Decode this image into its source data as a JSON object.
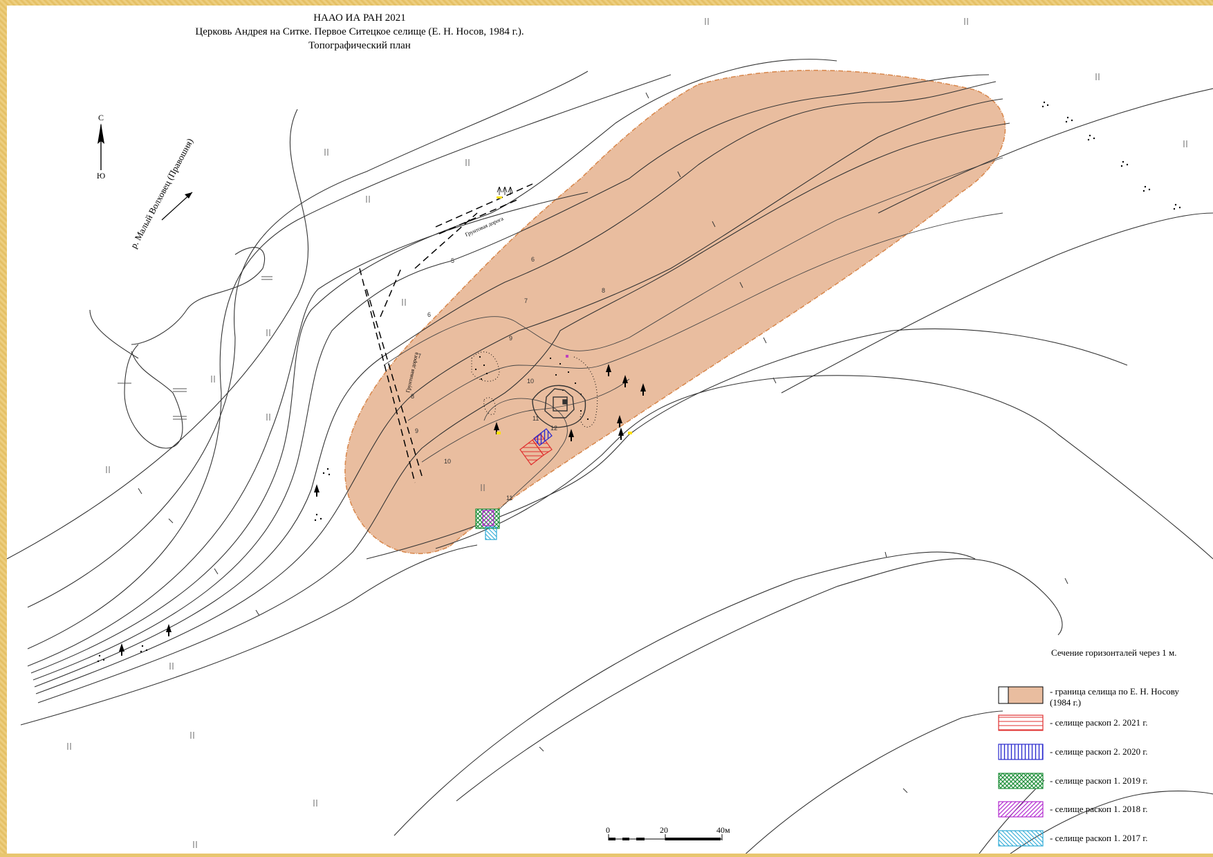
{
  "title": {
    "line1": "НААО ИА РАН 2021",
    "line2": "Церковь Андрея на Ситке. Первое Ситецкое селище (Е. Н. Носов, 1984 г.).",
    "line3": "Топографический план"
  },
  "north_arrow": {
    "north": "С",
    "south": "Ю"
  },
  "river_label": "р. Малый Волховец (Правошня)",
  "path_label": "Грунтовая дорога",
  "contour_interval": "Сечение горизонталей через 1 м.",
  "contour_labels": [
    "5",
    "6",
    "6",
    "7",
    "7",
    "8",
    "8",
    "9",
    "9",
    "10",
    "10",
    "11",
    "11",
    "12"
  ],
  "legend": [
    {
      "label_line1": "- граница селища по Е. Н. Носову",
      "label_line2": "(1984 г.)",
      "color": "#e9bd9f",
      "pattern": "fill"
    },
    {
      "label_line1": "- селище раскоп 2. 2021 г.",
      "color": "#e0302f",
      "pattern": "horizontal"
    },
    {
      "label_line1": "- селище раскоп 2. 2020 г.",
      "color": "#2c2ccf",
      "pattern": "vertical"
    },
    {
      "label_line1": "- селище раскоп 1. 2019 г.",
      "color": "#1f8f3a",
      "pattern": "cross"
    },
    {
      "label_line1": "- селище раскоп 1. 2018 г.",
      "color": "#b32cd0",
      "pattern": "diagonal"
    },
    {
      "label_line1": "- селище раскоп 1. 2017 г.",
      "color": "#2ba9d6",
      "pattern": "diagonal-rev"
    }
  ],
  "scale_bar": {
    "ticks": [
      "0",
      "20",
      "40м"
    ]
  },
  "colors": {
    "settlement_fill": "#e9bd9f",
    "settlement_stroke": "#d98a50",
    "frame": "#e8c66f"
  }
}
